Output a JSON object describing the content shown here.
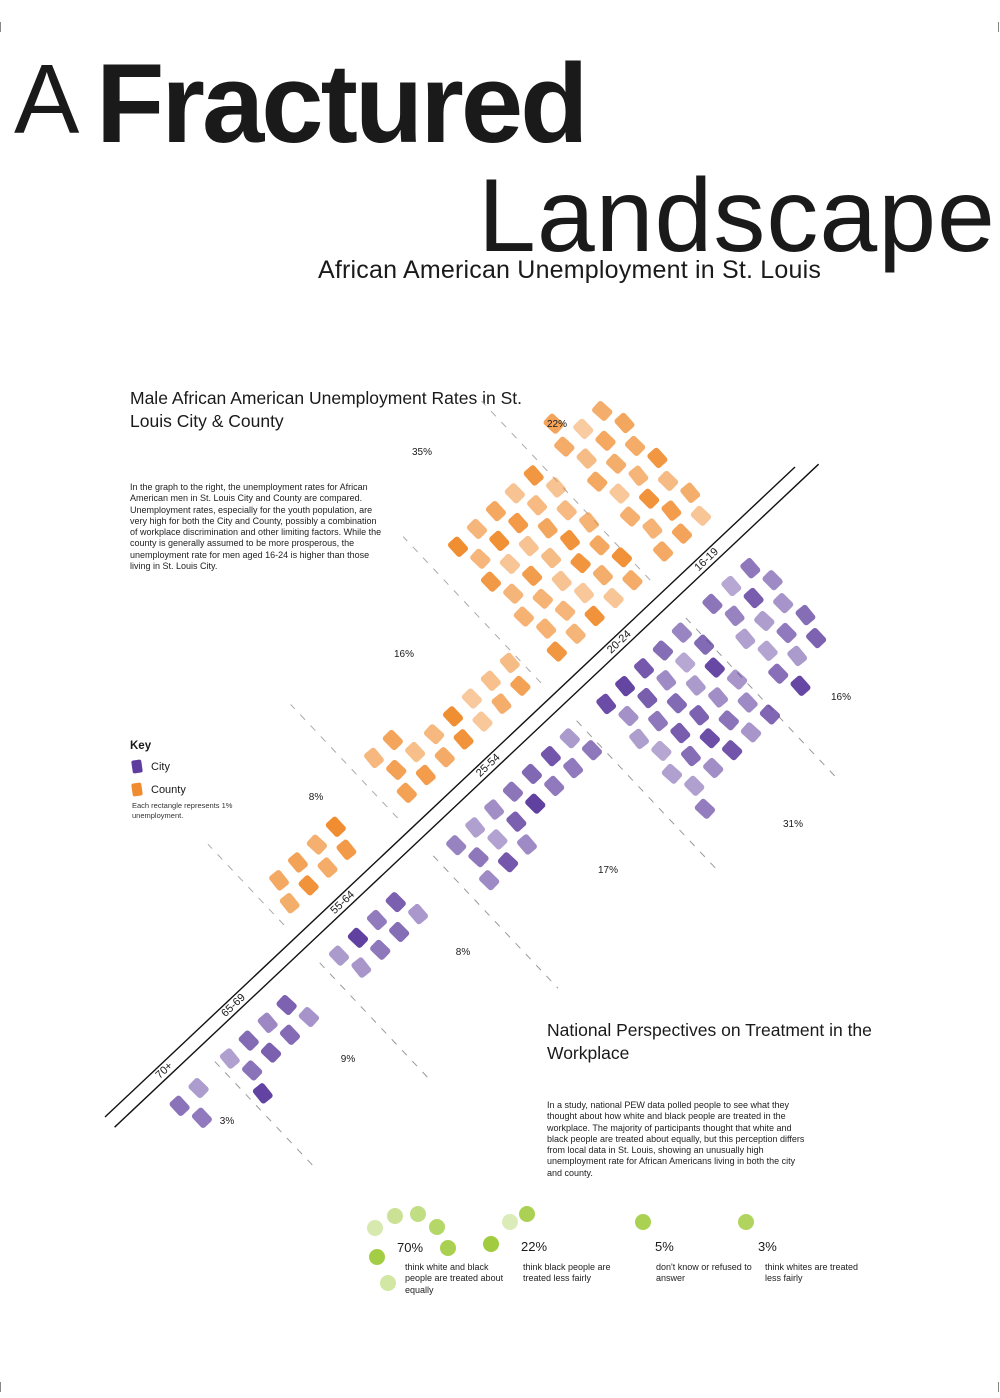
{
  "poster": {
    "title_a": "A",
    "title_main": "Fractured",
    "title_land": "Landscape",
    "subtitle": "African American Unemployment in St. Louis"
  },
  "chart_section": {
    "heading": "Male African American Unemployment Rates in St. Louis City & County",
    "description": "In the graph to the right, the unemployment rates for African American men in St. Louis City and County are compared. Unemployment rates, especially for the youth population, are very high for both the City and County, possibly a combination of workplace discrimination and other limiting factors. While the county is generally assumed to be more prosperous, the unemployment rate for men aged 16-24 is higher than those living in St. Louis City."
  },
  "key": {
    "title": "Key",
    "city_label": "City",
    "county_label": "County",
    "note": "Each rectangle represents 1% unemployment."
  },
  "colors": {
    "city": "#5e3d9e",
    "county": "#f08c2e",
    "lime": "#9cc936",
    "text": "#1a1a1a"
  },
  "chart_data": {
    "type": "pictograph",
    "unit": "1% unemployment per rectangle",
    "categories": [
      "70+",
      "65-69",
      "55-64",
      "25-54",
      "20-24",
      "16-19"
    ],
    "series": [
      {
        "name": "City",
        "values": [
          3,
          9,
          8,
          17,
          31,
          16
        ],
        "labels": [
          "3%",
          "9%",
          "8%",
          "17%",
          "31%",
          "16%"
        ]
      },
      {
        "name": "County",
        "values": [
          0,
          0,
          8,
          16,
          35,
          22
        ],
        "labels": [
          "",
          "",
          "8%",
          "16%",
          "35%",
          "22%"
        ]
      }
    ]
  },
  "pew": {
    "heading": "National Perspectives on Treatment in the Workplace",
    "description": "In a study, national PEW data polled people to see what they thought about how white and black people are treated in the workplace. The majority of participants thought that white and black people are treated about equally, but this perception differs from local data in St. Louis, showing an unusually high unemployment rate for African Americans living in both the city and county.",
    "items": [
      {
        "value": 70,
        "pct": "70%",
        "label": "think white and black people are treated about equally"
      },
      {
        "value": 22,
        "pct": "22%",
        "label": "think black people are treated less fairly"
      },
      {
        "value": 5,
        "pct": "5%",
        "label": "don't know or refused to answer"
      },
      {
        "value": 3,
        "pct": "3%",
        "label": "think whites are treated less fairly"
      }
    ]
  }
}
